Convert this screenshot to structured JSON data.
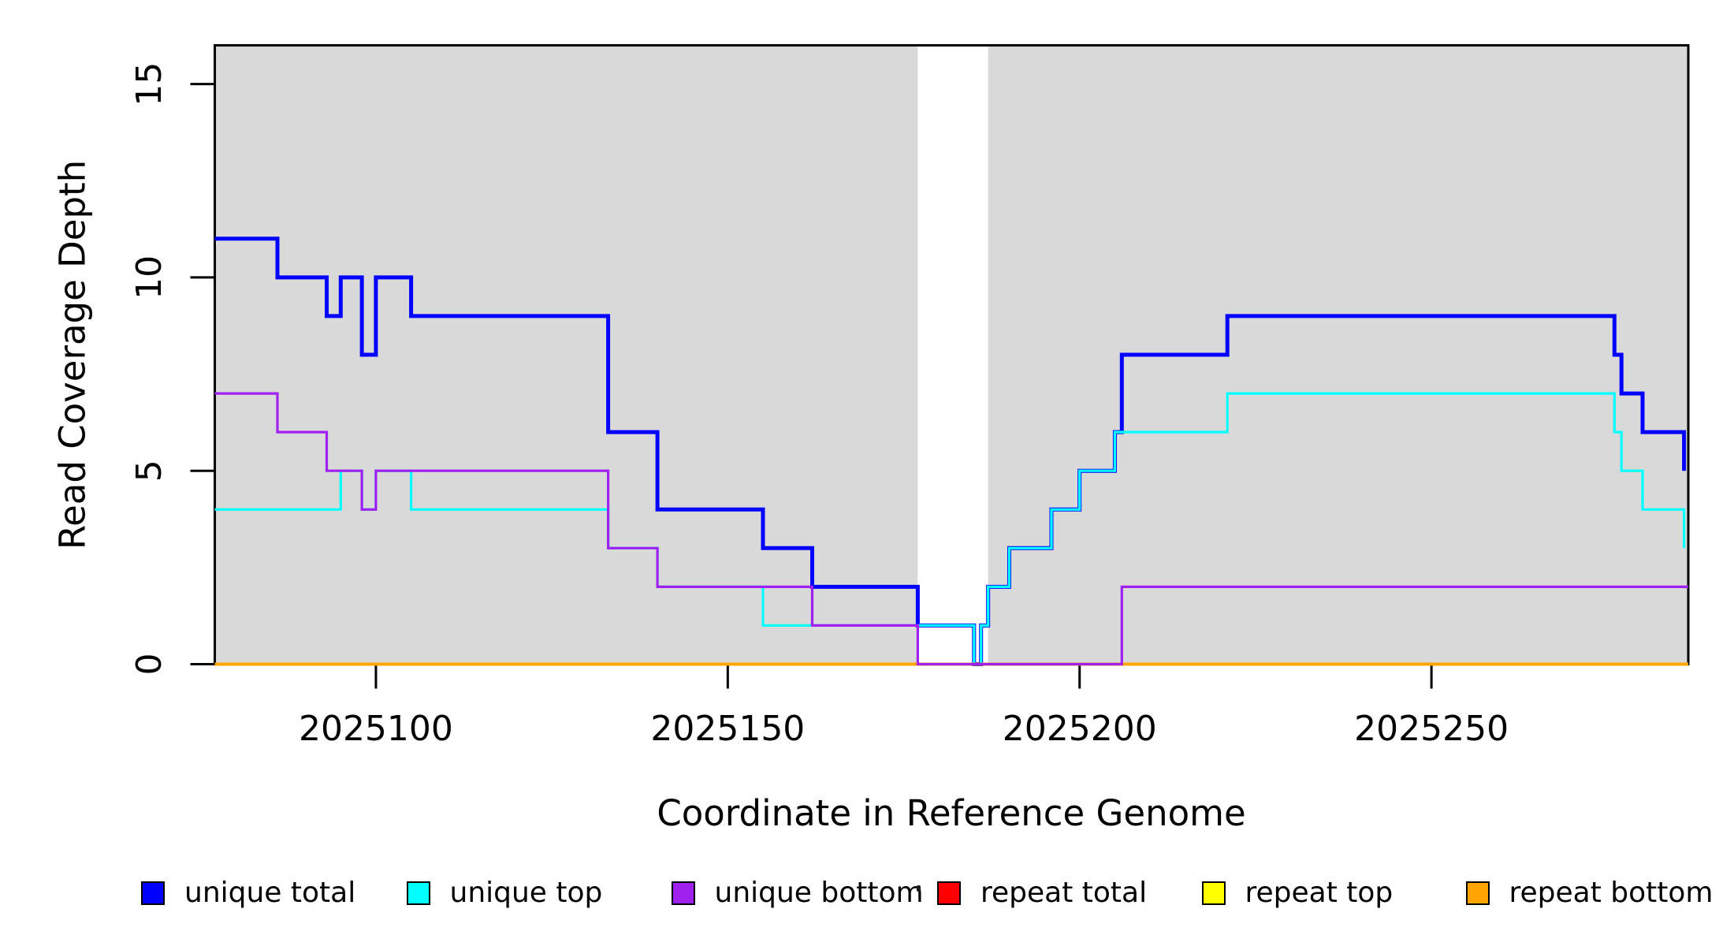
{
  "chart_data": {
    "type": "line",
    "step_interpolation": true,
    "title": "",
    "xlabel": "Coordinate in Reference Genome",
    "ylabel": "Read Coverage Depth",
    "xlim": [
      2025077.1,
      2025286.5
    ],
    "ylim": [
      0,
      16
    ],
    "x_ticks": [
      2025100,
      2025150,
      2025200,
      2025250
    ],
    "y_ticks": [
      0,
      5,
      10,
      15
    ],
    "grid": false,
    "plot_background": "#ffffff",
    "shaded_regions": {
      "color": "#d9d9d9",
      "note": "gray rectangles spanning full plot height; white gap between them",
      "ranges": [
        [
          2025077.1,
          2025177
        ],
        [
          2025187,
          2025286.5
        ]
      ]
    },
    "series": [
      {
        "name": "unique total",
        "color": "#0000ff",
        "line_width": 5,
        "points": [
          [
            2025077.1,
            11
          ],
          [
            2025086,
            10
          ],
          [
            2025093,
            9
          ],
          [
            2025095,
            10
          ],
          [
            2025098,
            8
          ],
          [
            2025100,
            10
          ],
          [
            2025105,
            9
          ],
          [
            2025133,
            6
          ],
          [
            2025140,
            4
          ],
          [
            2025155,
            3
          ],
          [
            2025162,
            2
          ],
          [
            2025177,
            1
          ],
          [
            2025185,
            0
          ],
          [
            2025186,
            1
          ],
          [
            2025187,
            2
          ],
          [
            2025190,
            3
          ],
          [
            2025196,
            4
          ],
          [
            2025200,
            5
          ],
          [
            2025205,
            6
          ],
          [
            2025206,
            8
          ],
          [
            2025221,
            9
          ],
          [
            2025276,
            8
          ],
          [
            2025277,
            7
          ],
          [
            2025280,
            6
          ],
          [
            2025285.9,
            5
          ]
        ]
      },
      {
        "name": "unique top",
        "color": "#00ffff",
        "line_width": 3.2,
        "points": [
          [
            2025077.1,
            4
          ],
          [
            2025095,
            5
          ],
          [
            2025098,
            4
          ],
          [
            2025100,
            5
          ],
          [
            2025105,
            4
          ],
          [
            2025133,
            3
          ],
          [
            2025140,
            2
          ],
          [
            2025155,
            1
          ],
          [
            2025185,
            0
          ],
          [
            2025186,
            1
          ],
          [
            2025187,
            2
          ],
          [
            2025190,
            3
          ],
          [
            2025196,
            4
          ],
          [
            2025200,
            5
          ],
          [
            2025205,
            6
          ],
          [
            2025221,
            7
          ],
          [
            2025276,
            6
          ],
          [
            2025277,
            5
          ],
          [
            2025280,
            4
          ],
          [
            2025285.9,
            3
          ]
        ]
      },
      {
        "name": "repeat total",
        "color": "#ff0000",
        "line_width": 3,
        "points": [
          [
            2025077.1,
            0
          ],
          [
            2025286.5,
            0
          ]
        ]
      },
      {
        "name": "repeat top",
        "color": "#ffff00",
        "line_width": 3,
        "points": [
          [
            2025077.1,
            0
          ],
          [
            2025286.5,
            0
          ]
        ]
      },
      {
        "name": "repeat bottom",
        "color": "#ffa500",
        "line_width": 4,
        "points": [
          [
            2025077.1,
            0
          ],
          [
            2025286.5,
            0
          ]
        ]
      },
      {
        "name": "unique bottom",
        "color": "#a020f0",
        "line_width": 3.2,
        "points": [
          [
            2025077.1,
            7
          ],
          [
            2025086,
            6
          ],
          [
            2025093,
            5
          ],
          [
            2025098,
            4
          ],
          [
            2025100,
            5
          ],
          [
            2025133,
            3
          ],
          [
            2025140,
            2
          ],
          [
            2025162,
            1
          ],
          [
            2025177,
            0
          ],
          [
            2025206,
            2
          ],
          [
            2025286.5,
            2
          ]
        ]
      }
    ]
  },
  "legend": {
    "items": [
      {
        "label": "unique total",
        "color": "#0000ff"
      },
      {
        "label": "unique top",
        "color": "#00ffff"
      },
      {
        "label": "unique bottom",
        "color": "#a020f0"
      },
      {
        "label": "repeat total",
        "color": "#ff0000"
      },
      {
        "label": "repeat top",
        "color": "#ffff00"
      },
      {
        "label": "repeat bottom",
        "color": "#ffa500"
      }
    ]
  },
  "colors": {
    "shading": "#d9d9d9",
    "axis": "#000000",
    "text": "#000000"
  }
}
